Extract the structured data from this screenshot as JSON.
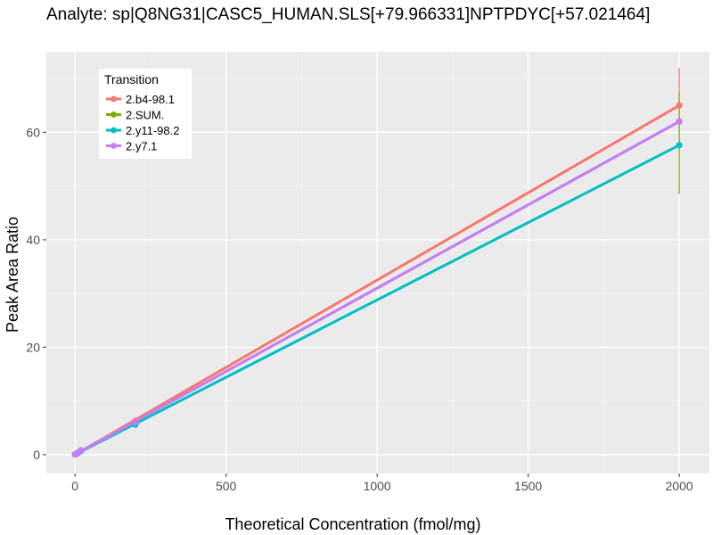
{
  "chart_data": {
    "type": "line",
    "title": "Analyte: sp|Q8NG31|CASC5_HUMAN.SLS[+79.966331]NPTPDYC[+57.021464]",
    "xlabel": "Theoretical Concentration (fmol/mg)",
    "ylabel": "Peak Area Ratio",
    "xlim": [
      -95,
      2100
    ],
    "ylim": [
      -3.5,
      75
    ],
    "x_ticks": [
      0,
      500,
      1000,
      1500,
      2000
    ],
    "y_ticks": [
      0,
      20,
      40,
      60
    ],
    "x_tick_labels": [
      "0",
      "500",
      "1000",
      "1500",
      "2000"
    ],
    "y_tick_labels": [
      "0",
      "20",
      "40",
      "60"
    ],
    "grid": true,
    "legend": {
      "title": "Transition",
      "placement": "top-left"
    },
    "series": [
      {
        "name": "2.b4-98.1",
        "color": "#F8766D",
        "points": [
          [
            0,
            0.05
          ],
          [
            2,
            0.1
          ],
          [
            10,
            0.4
          ],
          [
            20,
            0.8
          ],
          [
            200,
            6.3
          ],
          [
            2000,
            65.0
          ]
        ],
        "fit": [
          [
            0,
            0.0
          ],
          [
            2000,
            65.0
          ]
        ],
        "error_bars": [
          {
            "x": 2000,
            "low": 58.0,
            "high": 72.0
          }
        ]
      },
      {
        "name": "2.SUM.",
        "color": "#7CAE00",
        "points": [
          [
            0,
            0.05
          ],
          [
            2,
            0.1
          ],
          [
            10,
            0.4
          ],
          [
            20,
            0.8
          ],
          [
            200,
            6.0
          ],
          [
            2000,
            62.0
          ]
        ],
        "fit": [
          [
            0,
            0.0
          ],
          [
            2000,
            62.0
          ]
        ],
        "error_bars": [
          {
            "x": 2000,
            "low": 48.5,
            "high": 67.5
          }
        ]
      },
      {
        "name": "2.y11-98.2",
        "color": "#00BFC4",
        "points": [
          [
            0,
            0.05
          ],
          [
            2,
            0.1
          ],
          [
            10,
            0.3
          ],
          [
            20,
            0.7
          ],
          [
            200,
            5.6
          ],
          [
            2000,
            57.6
          ]
        ],
        "fit": [
          [
            0,
            0.0
          ],
          [
            2000,
            57.6
          ]
        ],
        "error_bars": []
      },
      {
        "name": "2.y7.1",
        "color": "#C77CFF",
        "points": [
          [
            0,
            0.05
          ],
          [
            2,
            0.1
          ],
          [
            10,
            0.4
          ],
          [
            20,
            0.8
          ],
          [
            200,
            6.0
          ],
          [
            2000,
            62.0
          ]
        ],
        "fit": [
          [
            0,
            0.0
          ],
          [
            2000,
            62.0
          ]
        ],
        "error_bars": []
      }
    ]
  }
}
